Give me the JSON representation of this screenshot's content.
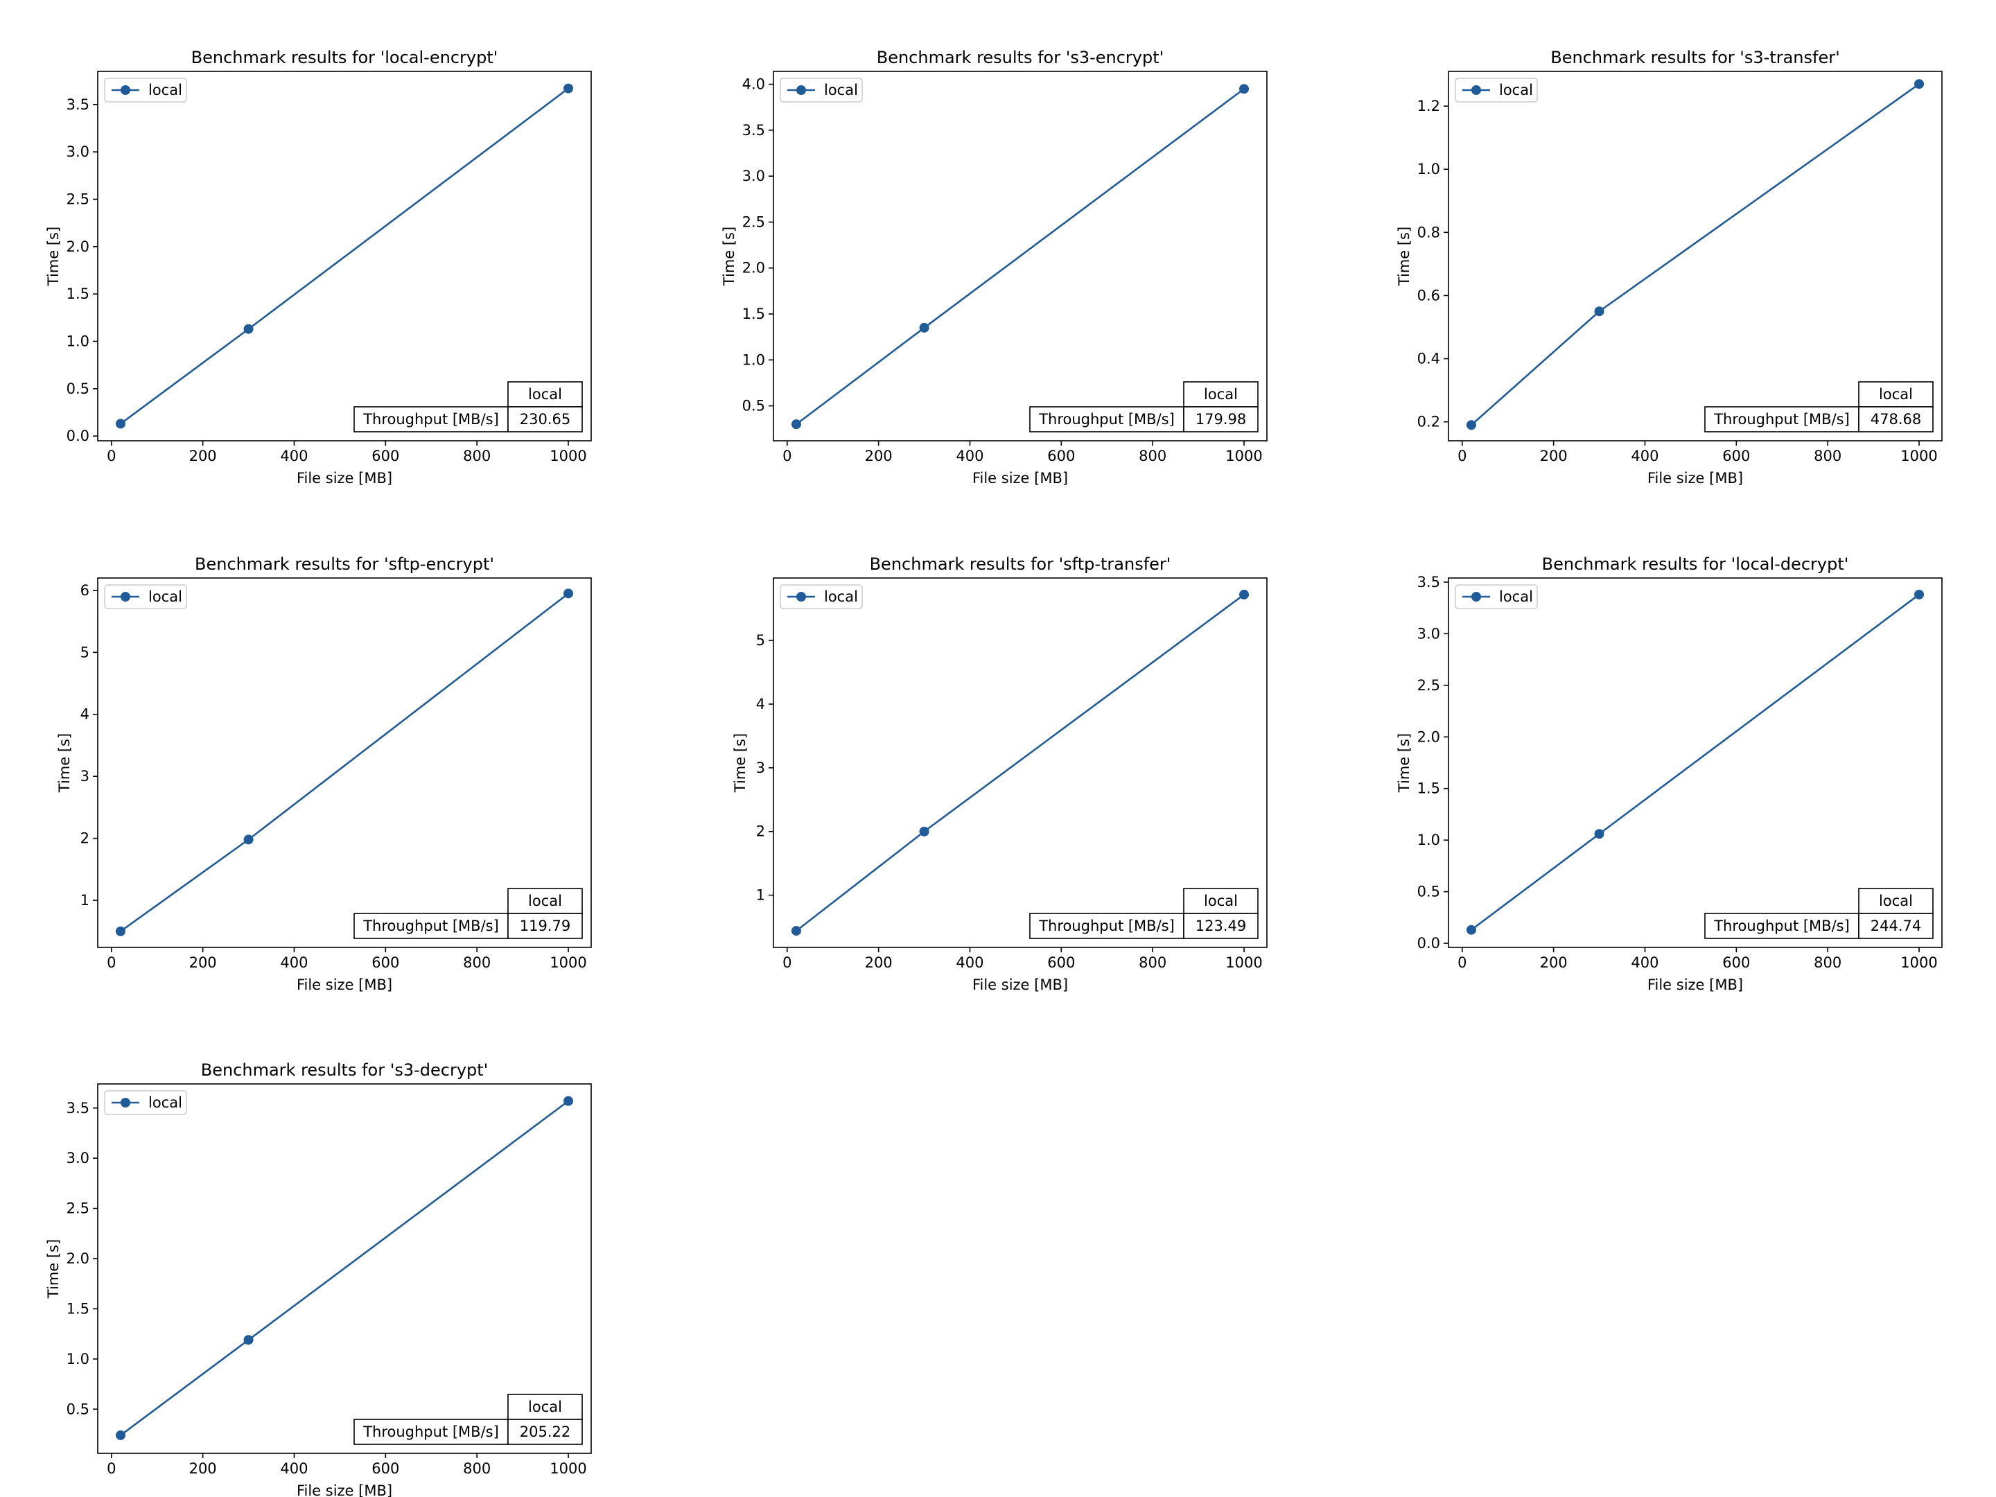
{
  "chart_data": [
    {
      "type": "line",
      "title": "Benchmark results for 'local-encrypt'",
      "xlabel": "File size [MB]",
      "ylabel": "Time [s]",
      "xlim": [
        -30,
        1050
      ],
      "ylim": [
        -0.05,
        3.85
      ],
      "xticks": [
        0,
        200,
        400,
        600,
        800,
        1000
      ],
      "yticks": [
        0.0,
        0.5,
        1.0,
        1.5,
        2.0,
        2.5,
        3.0,
        3.5
      ],
      "ytick_labels": [
        "0.0",
        "0.5",
        "1.0",
        "1.5",
        "2.0",
        "2.5",
        "3.0",
        "3.5"
      ],
      "legend": "upper-left",
      "series": [
        {
          "name": "local",
          "x": [
            20,
            300,
            1000
          ],
          "y": [
            0.13,
            1.13,
            3.67
          ]
        }
      ],
      "table": {
        "column": "local",
        "row_label": "Throughput [MB/s]",
        "value": "230.65"
      }
    },
    {
      "type": "line",
      "title": "Benchmark results for 's3-encrypt'",
      "xlabel": "File size [MB]",
      "ylabel": "Time [s]",
      "xlim": [
        -30,
        1050
      ],
      "ylim": [
        0.12,
        4.14
      ],
      "xticks": [
        0,
        200,
        400,
        600,
        800,
        1000
      ],
      "yticks": [
        0.5,
        1.0,
        1.5,
        2.0,
        2.5,
        3.0,
        3.5,
        4.0
      ],
      "ytick_labels": [
        "0.5",
        "1.0",
        "1.5",
        "2.0",
        "2.5",
        "3.0",
        "3.5",
        "4.0"
      ],
      "legend": "upper-left",
      "series": [
        {
          "name": "local",
          "x": [
            20,
            300,
            1000
          ],
          "y": [
            0.3,
            1.35,
            3.95
          ]
        }
      ],
      "table": {
        "column": "local",
        "row_label": "Throughput [MB/s]",
        "value": "179.98"
      }
    },
    {
      "type": "line",
      "title": "Benchmark results for 's3-transfer'",
      "xlabel": "File size [MB]",
      "ylabel": "Time [s]",
      "xlim": [
        -30,
        1050
      ],
      "ylim": [
        0.14,
        1.31
      ],
      "xticks": [
        0,
        200,
        400,
        600,
        800,
        1000
      ],
      "yticks": [
        0.2,
        0.4,
        0.6,
        0.8,
        1.0,
        1.2
      ],
      "ytick_labels": [
        "0.2",
        "0.4",
        "0.6",
        "0.8",
        "1.0",
        "1.2"
      ],
      "legend": "upper-left",
      "series": [
        {
          "name": "local",
          "x": [
            20,
            300,
            1000
          ],
          "y": [
            0.19,
            0.55,
            1.27
          ]
        }
      ],
      "table": {
        "column": "local",
        "row_label": "Throughput [MB/s]",
        "value": "478.68"
      }
    },
    {
      "type": "line",
      "title": "Benchmark results for 'sftp-encrypt'",
      "xlabel": "File size [MB]",
      "ylabel": "Time [s]",
      "xlim": [
        -30,
        1050
      ],
      "ylim": [
        0.24,
        6.2
      ],
      "xticks": [
        0,
        200,
        400,
        600,
        800,
        1000
      ],
      "yticks": [
        1,
        2,
        3,
        4,
        5,
        6
      ],
      "ytick_labels": [
        "1",
        "2",
        "3",
        "4",
        "5",
        "6"
      ],
      "legend": "upper-left",
      "series": [
        {
          "name": "local",
          "x": [
            20,
            300,
            1000
          ],
          "y": [
            0.5,
            1.98,
            5.95
          ]
        }
      ],
      "table": {
        "column": "local",
        "row_label": "Throughput [MB/s]",
        "value": "119.79"
      }
    },
    {
      "type": "line",
      "title": "Benchmark results for 'sftp-transfer'",
      "xlabel": "File size [MB]",
      "ylabel": "Time [s]",
      "xlim": [
        -30,
        1050
      ],
      "ylim": [
        0.18,
        5.98
      ],
      "xticks": [
        0,
        200,
        400,
        600,
        800,
        1000
      ],
      "yticks": [
        1,
        2,
        3,
        4,
        5
      ],
      "ytick_labels": [
        "1",
        "2",
        "3",
        "4",
        "5"
      ],
      "legend": "upper-left",
      "series": [
        {
          "name": "local",
          "x": [
            20,
            300,
            1000
          ],
          "y": [
            0.44,
            2.0,
            5.72
          ]
        }
      ],
      "table": {
        "column": "local",
        "row_label": "Throughput [MB/s]",
        "value": "123.49"
      }
    },
    {
      "type": "line",
      "title": "Benchmark results for 'local-decrypt'",
      "xlabel": "File size [MB]",
      "ylabel": "Time [s]",
      "xlim": [
        -30,
        1050
      ],
      "ylim": [
        -0.04,
        3.54
      ],
      "xticks": [
        0,
        200,
        400,
        600,
        800,
        1000
      ],
      "yticks": [
        0.0,
        0.5,
        1.0,
        1.5,
        2.0,
        2.5,
        3.0,
        3.5
      ],
      "ytick_labels": [
        "0.0",
        "0.5",
        "1.0",
        "1.5",
        "2.0",
        "2.5",
        "3.0",
        "3.5"
      ],
      "legend": "upper-left",
      "series": [
        {
          "name": "local",
          "x": [
            20,
            300,
            1000
          ],
          "y": [
            0.13,
            1.06,
            3.38
          ]
        }
      ],
      "table": {
        "column": "local",
        "row_label": "Throughput [MB/s]",
        "value": "244.74"
      }
    },
    {
      "type": "line",
      "title": "Benchmark results for 's3-decrypt'",
      "xlabel": "File size [MB]",
      "ylabel": "Time [s]",
      "xlim": [
        -30,
        1050
      ],
      "ylim": [
        0.06,
        3.74
      ],
      "xticks": [
        0,
        200,
        400,
        600,
        800,
        1000
      ],
      "yticks": [
        0.5,
        1.0,
        1.5,
        2.0,
        2.5,
        3.0,
        3.5
      ],
      "ytick_labels": [
        "0.5",
        "1.0",
        "1.5",
        "2.0",
        "2.5",
        "3.0",
        "3.5"
      ],
      "legend": "upper-left",
      "series": [
        {
          "name": "local",
          "x": [
            20,
            300,
            1000
          ],
          "y": [
            0.24,
            1.19,
            3.57
          ]
        }
      ],
      "table": {
        "column": "local",
        "row_label": "Throughput [MB/s]",
        "value": "205.22"
      }
    }
  ],
  "colors": {
    "series": "#1f5b99",
    "axes": "#000000"
  }
}
